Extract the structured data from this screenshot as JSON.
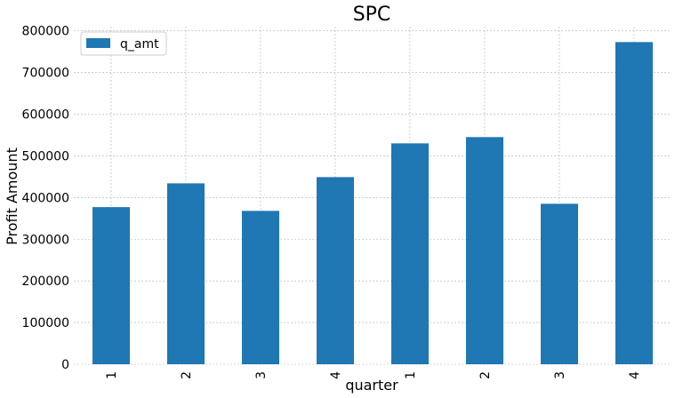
{
  "chart_data": {
    "type": "bar",
    "title": "SPC",
    "xlabel": "quarter",
    "ylabel": "Profit Amount",
    "categories": [
      "1",
      "2",
      "3",
      "4",
      "1",
      "2",
      "3",
      "4"
    ],
    "series": [
      {
        "name": "q_amt",
        "color": "#1f77b4",
        "values": [
          377000,
          434000,
          368000,
          449000,
          530000,
          545000,
          385000,
          773000
        ]
      }
    ],
    "ylim": [
      0,
      810000
    ],
    "yticks": [
      "0",
      "100000",
      "200000",
      "300000",
      "400000",
      "500000",
      "600000",
      "700000",
      "800000"
    ],
    "ytick_values": [
      0,
      100000,
      200000,
      300000,
      400000,
      500000,
      600000,
      700000,
      800000
    ],
    "grid": true,
    "legend_position": "top-left"
  }
}
